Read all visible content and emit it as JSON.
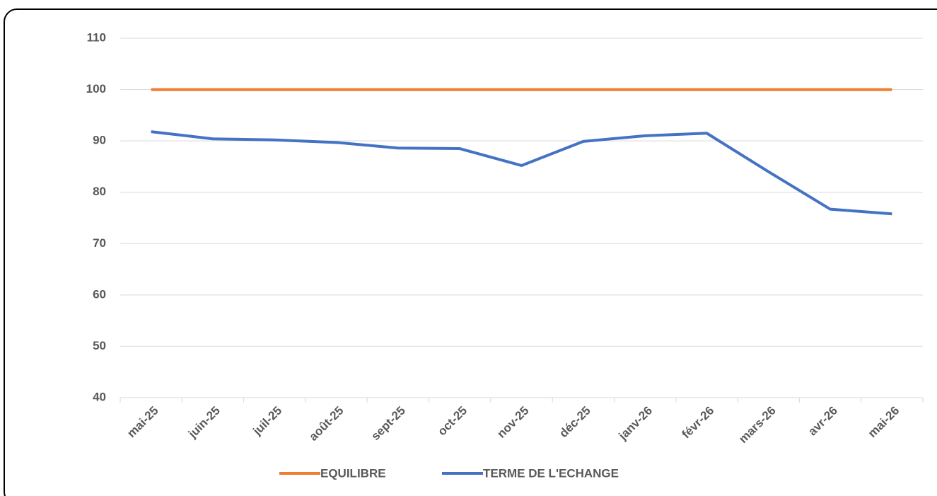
{
  "chart_data": {
    "type": "line",
    "categories": [
      "mai-25",
      "juin-25",
      "juil-25",
      "août-25",
      "sept-25",
      "oct-25",
      "nov-25",
      "déc-25",
      "janv-26",
      "févr-26",
      "mars-26",
      "avr-26",
      "mai-26"
    ],
    "series": [
      {
        "name": "EQUILIBRE",
        "color": "#ed7d31",
        "values": [
          100,
          100,
          100,
          100,
          100,
          100,
          100,
          100,
          100,
          100,
          100,
          100,
          100
        ]
      },
      {
        "name": "TERME DE L'ECHANGE",
        "color": "#4472c4",
        "values": [
          91.8,
          90.4,
          90.2,
          89.7,
          88.6,
          88.5,
          85.2,
          89.9,
          91.0,
          91.5,
          84.0,
          76.7,
          75.8
        ]
      }
    ],
    "ylim": [
      40,
      110
    ],
    "yticks": [
      40,
      50,
      60,
      70,
      80,
      90,
      100,
      110
    ],
    "grid": true,
    "legend": "bottom"
  }
}
